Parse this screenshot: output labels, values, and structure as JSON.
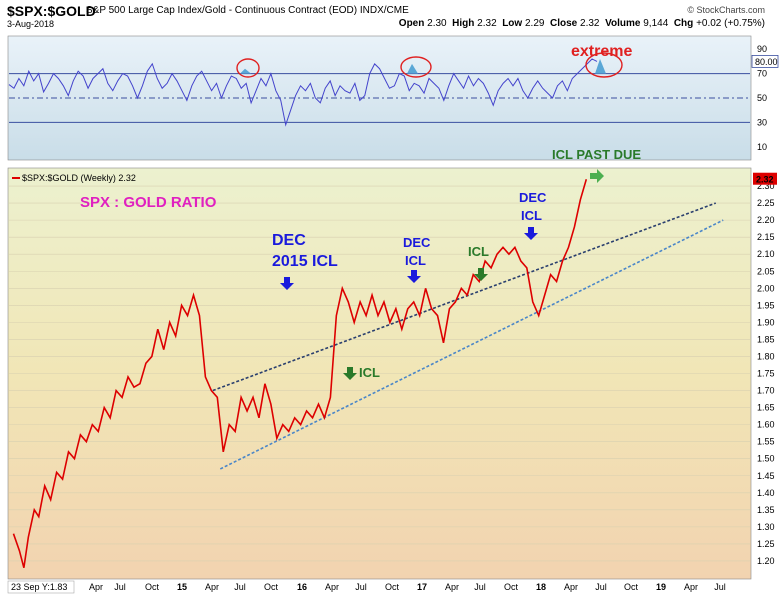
{
  "header": {
    "symbol": "$SPX:$GOLD",
    "description": "S&P 500 Large Cap Index/Gold - Continuous Contract (EOD)  INDX/CME",
    "source": "© StockCharts.com",
    "date": "3-Aug-2018",
    "ohlc": {
      "open_label": "Open",
      "open": "2.30",
      "high_label": "High",
      "high": "2.32",
      "low_label": "Low",
      "low": "2.29",
      "close_label": "Close",
      "close": "2.32",
      "volume_label": "Volume",
      "volume": "9,144",
      "chg_label": "Chg",
      "chg": "+0.02 (+0.75%)"
    }
  },
  "colors": {
    "price_line": "#dd0000",
    "rsi_line": "#4444cc",
    "channel": "#2b4d9a",
    "annotation_blue": "#1a1adc",
    "annotation_green": "#2a7a2a",
    "annotation_magenta": "#e020c0",
    "extreme_red": "#e02020"
  },
  "chart_data": [
    {
      "type": "line",
      "panel": "rsi",
      "ylim": [
        0,
        100
      ],
      "yticks": [
        "90",
        "80.00",
        "70",
        "50",
        "30",
        "10"
      ],
      "reference_levels": [
        70,
        50,
        30
      ],
      "last_value": 80.0,
      "values": [
        61,
        58,
        66,
        60,
        72,
        64,
        70,
        55,
        62,
        70,
        66,
        60,
        52,
        64,
        72,
        68,
        58,
        66,
        70,
        74,
        62,
        56,
        64,
        70,
        68,
        60,
        50,
        60,
        72,
        78,
        66,
        58,
        62,
        70,
        64,
        56,
        48,
        60,
        68,
        72,
        64,
        56,
        62,
        50,
        60,
        68,
        66,
        58,
        62,
        46,
        56,
        66,
        60,
        70,
        56,
        48,
        28,
        40,
        52,
        60,
        56,
        62,
        50,
        46,
        58,
        64,
        52,
        60,
        56,
        54,
        62,
        48,
        52,
        70,
        78,
        74,
        66,
        58,
        60,
        70,
        68,
        56,
        62,
        60,
        54,
        66,
        62,
        58,
        48,
        60,
        70,
        64,
        58,
        68,
        60,
        66,
        62,
        54,
        44,
        56,
        62,
        66,
        60,
        66,
        56,
        50,
        58,
        64,
        58,
        54,
        50,
        60,
        64,
        56,
        66,
        70,
        74,
        78,
        82,
        80
      ]
    },
    {
      "type": "line",
      "panel": "price",
      "legend": "$SPX:$GOLD (Weekly) 2.32",
      "last_value": "2.32",
      "ylim": [
        1.15,
        2.35
      ],
      "yticks": [
        "2.30",
        "2.25",
        "2.20",
        "2.15",
        "2.10",
        "2.05",
        "2.00",
        "1.95",
        "1.90",
        "1.85",
        "1.80",
        "1.75",
        "1.70",
        "1.65",
        "1.60",
        "1.55",
        "1.50",
        "1.45",
        "1.40",
        "1.35",
        "1.30",
        "1.25",
        "1.20"
      ],
      "x_start": "23 Sep Y:1.83",
      "xlabels": [
        "Apr",
        "Jul",
        "Oct",
        "15",
        "Apr",
        "Jul",
        "Oct",
        "16",
        "Apr",
        "Jul",
        "Oct",
        "17",
        "Apr",
        "Jul",
        "Oct",
        "18",
        "Apr",
        "Jul",
        "Oct",
        "19",
        "Apr",
        "Jul"
      ],
      "points": [
        [
          2014.73,
          1.28
        ],
        [
          2014.77,
          1.23
        ],
        [
          2014.8,
          1.18
        ],
        [
          2014.83,
          1.27
        ],
        [
          2014.87,
          1.35
        ],
        [
          2014.9,
          1.33
        ],
        [
          2014.94,
          1.42
        ],
        [
          2014.98,
          1.38
        ],
        [
          2015.02,
          1.46
        ],
        [
          2015.06,
          1.44
        ],
        [
          2015.1,
          1.52
        ],
        [
          2015.14,
          1.5
        ],
        [
          2015.18,
          1.57
        ],
        [
          2015.22,
          1.55
        ],
        [
          2015.26,
          1.6
        ],
        [
          2015.3,
          1.58
        ],
        [
          2015.34,
          1.65
        ],
        [
          2015.38,
          1.62
        ],
        [
          2015.42,
          1.7
        ],
        [
          2015.46,
          1.68
        ],
        [
          2015.5,
          1.74
        ],
        [
          2015.54,
          1.71
        ],
        [
          2015.58,
          1.72
        ],
        [
          2015.62,
          1.78
        ],
        [
          2015.66,
          1.8
        ],
        [
          2015.7,
          1.88
        ],
        [
          2015.74,
          1.82
        ],
        [
          2015.78,
          1.9
        ],
        [
          2015.82,
          1.86
        ],
        [
          2015.86,
          1.95
        ],
        [
          2015.9,
          1.92
        ],
        [
          2015.94,
          1.98
        ],
        [
          2015.98,
          1.92
        ],
        [
          2016.02,
          1.74
        ],
        [
          2016.06,
          1.7
        ],
        [
          2016.1,
          1.68
        ],
        [
          2016.14,
          1.52
        ],
        [
          2016.18,
          1.6
        ],
        [
          2016.22,
          1.58
        ],
        [
          2016.26,
          1.68
        ],
        [
          2016.3,
          1.64
        ],
        [
          2016.34,
          1.68
        ],
        [
          2016.38,
          1.62
        ],
        [
          2016.42,
          1.72
        ],
        [
          2016.46,
          1.66
        ],
        [
          2016.5,
          1.56
        ],
        [
          2016.54,
          1.6
        ],
        [
          2016.58,
          1.58
        ],
        [
          2016.62,
          1.62
        ],
        [
          2016.66,
          1.6
        ],
        [
          2016.7,
          1.64
        ],
        [
          2016.74,
          1.62
        ],
        [
          2016.78,
          1.66
        ],
        [
          2016.82,
          1.62
        ],
        [
          2016.86,
          1.68
        ],
        [
          2016.9,
          1.92
        ],
        [
          2016.94,
          2.0
        ],
        [
          2016.98,
          1.96
        ],
        [
          2017.02,
          1.9
        ],
        [
          2017.06,
          1.96
        ],
        [
          2017.1,
          1.92
        ],
        [
          2017.14,
          1.98
        ],
        [
          2017.18,
          1.92
        ],
        [
          2017.22,
          1.96
        ],
        [
          2017.26,
          1.9
        ],
        [
          2017.3,
          1.94
        ],
        [
          2017.34,
          1.88
        ],
        [
          2017.38,
          1.94
        ],
        [
          2017.42,
          1.96
        ],
        [
          2017.46,
          1.92
        ],
        [
          2017.5,
          2.0
        ],
        [
          2017.54,
          1.94
        ],
        [
          2017.58,
          1.92
        ],
        [
          2017.62,
          1.84
        ],
        [
          2017.66,
          1.94
        ],
        [
          2017.7,
          1.96
        ],
        [
          2017.74,
          2.0
        ],
        [
          2017.78,
          1.98
        ],
        [
          2017.82,
          2.04
        ],
        [
          2017.86,
          2.02
        ],
        [
          2017.9,
          2.08
        ],
        [
          2017.94,
          2.06
        ],
        [
          2017.98,
          2.1
        ],
        [
          2018.02,
          2.12
        ],
        [
          2018.06,
          2.1
        ],
        [
          2018.1,
          2.12
        ],
        [
          2018.14,
          2.08
        ],
        [
          2018.18,
          2.06
        ],
        [
          2018.22,
          1.96
        ],
        [
          2018.26,
          1.92
        ],
        [
          2018.3,
          1.98
        ],
        [
          2018.34,
          2.04
        ],
        [
          2018.38,
          2.02
        ],
        [
          2018.42,
          2.08
        ],
        [
          2018.46,
          2.12
        ],
        [
          2018.5,
          2.18
        ],
        [
          2018.54,
          2.26
        ],
        [
          2018.58,
          2.32
        ]
      ]
    }
  ],
  "annotations": {
    "extreme": "extreme",
    "title": "SPX : GOLD RATIO",
    "dec2015_line1": "DEC",
    "dec2015_line2": "2015 ICL",
    "icl_2016": "ICL",
    "dec_2016_line1": "DEC",
    "dec_2016_line2": "ICL",
    "icl_2017": "ICL",
    "dec_2017_line1": "DEC",
    "dec_2017_line2": "ICL",
    "icl_past_due": "ICL PAST DUE"
  }
}
